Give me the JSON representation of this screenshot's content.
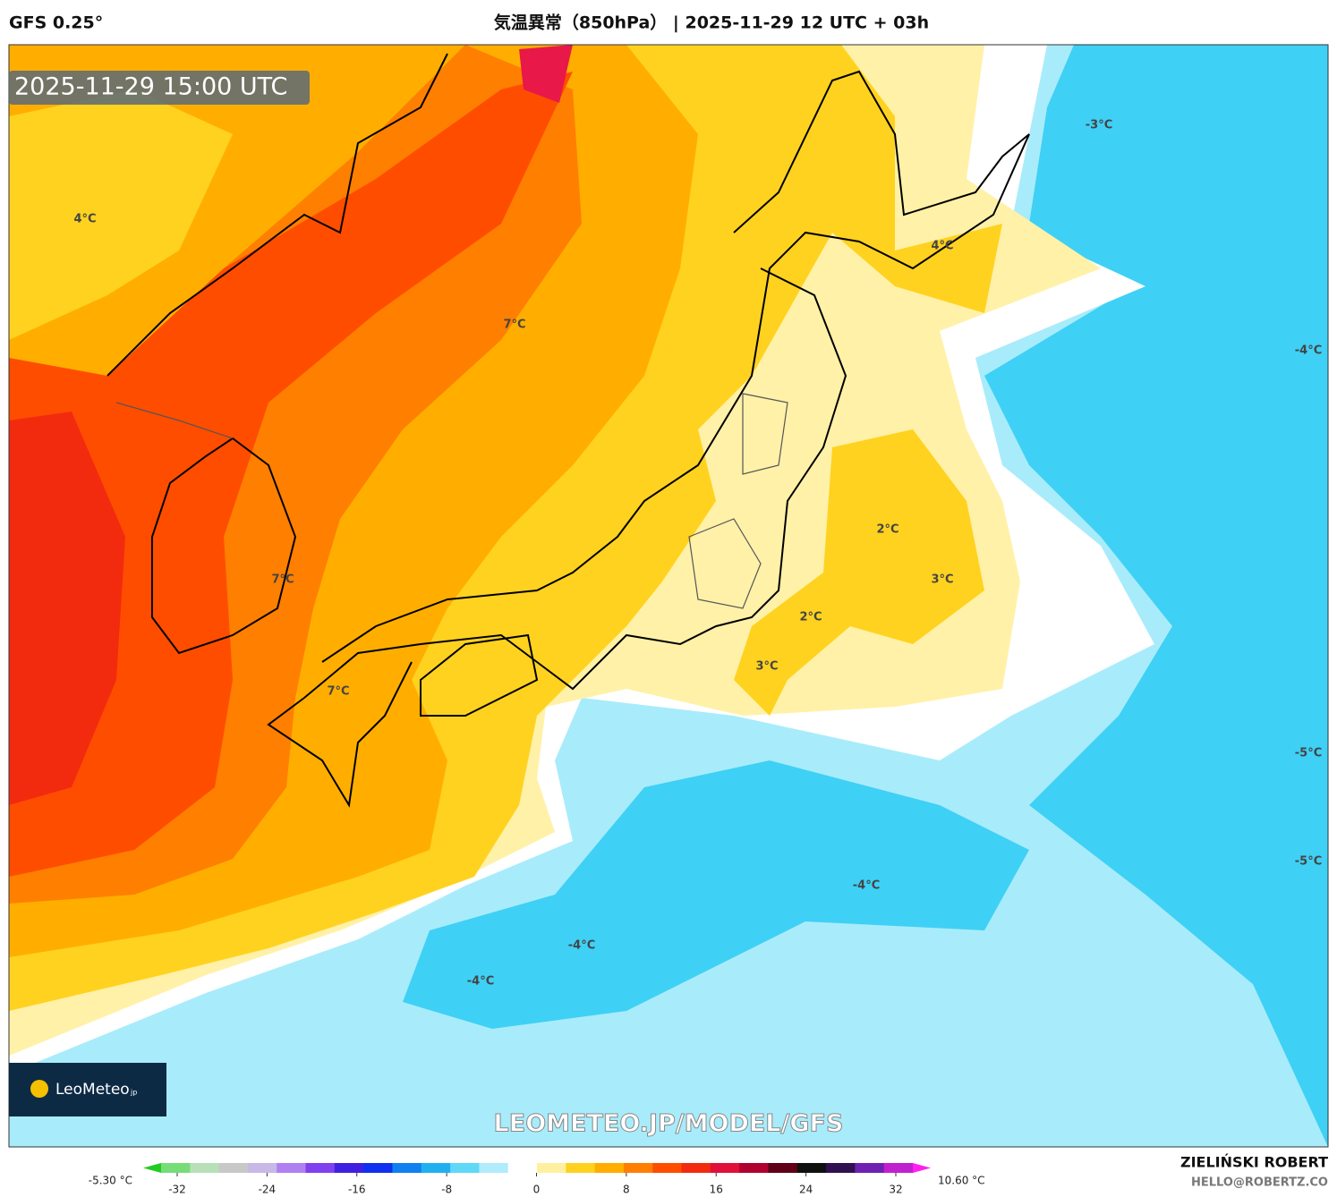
{
  "header": {
    "model": "GFS 0.25°",
    "title": "気温異常（850hPa） | 2025-11-29 12 UTC + 03h"
  },
  "map": {
    "valid_time": "2025-11-29 15:00 UTC",
    "watermark": "LEOMETEO.JP/MODEL/GFS",
    "contour_labels": [
      "4°C",
      "7°C",
      "7°C",
      "7°C",
      "4°C",
      "-3°C",
      "-4°C",
      "2°C",
      "3°C",
      "2°C",
      "3°C",
      "-5°C",
      "-5°C",
      "-4°C",
      "-4°C",
      "-4°C"
    ]
  },
  "logo": {
    "name": "LeoMeteo",
    "suffix": "jp"
  },
  "colorbar": {
    "min_label": "-5.30 °C",
    "max_label": "10.60 °C",
    "ticks": [
      -32,
      -24,
      -16,
      -8,
      0,
      8,
      16,
      24,
      32
    ],
    "colors": [
      "#22cc22",
      "#77dd77",
      "#b8e0b8",
      "#c8c8c8",
      "#c8b8e8",
      "#b080f0",
      "#8040f0",
      "#4020e0",
      "#1030f0",
      "#1080f0",
      "#20b0f0",
      "#60d8f8",
      "#b0ecfb",
      "#ffffff",
      "#fff0a0",
      "#ffd21f",
      "#ffae00",
      "#ff7f00",
      "#ff4d00",
      "#f22b0f",
      "#e0103a",
      "#b00030",
      "#600018",
      "#101010",
      "#301050",
      "#7020b0",
      "#c020d0",
      "#ff20f0"
    ]
  },
  "credit": {
    "author": "ZIELIŃSKI ROBERT",
    "email": "HELLO@ROBERTZ.CO"
  }
}
